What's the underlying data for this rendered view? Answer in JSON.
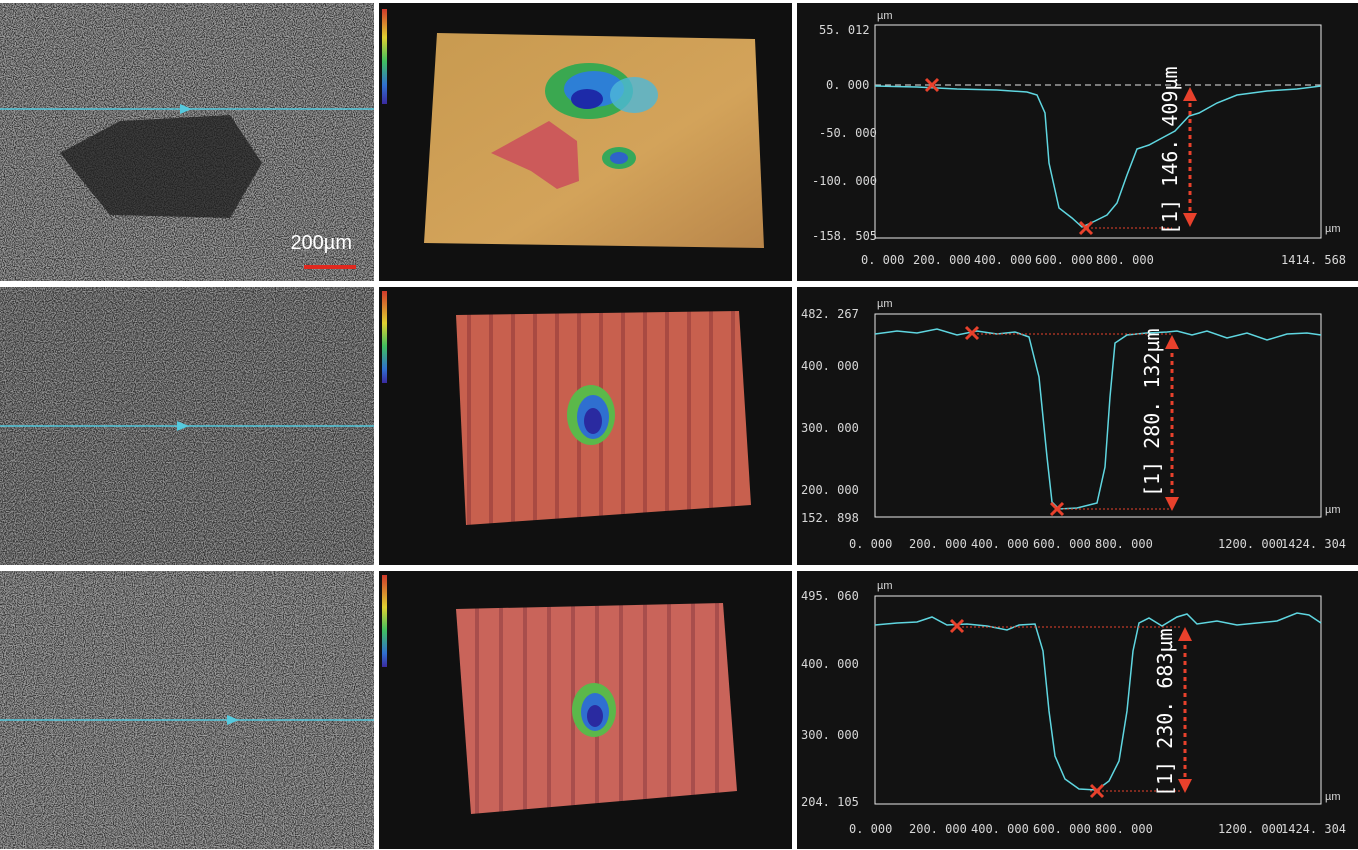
{
  "colors": {
    "profile_line": "#5fd6e0",
    "scan_line": "#55c9dd",
    "marker": "#e8412c",
    "arrow": "#e8412c",
    "panel_bg": "#111111"
  },
  "rows": [
    {
      "micrograph": {
        "scale_label": "200µm"
      },
      "profile": {
        "unit_y": "µm",
        "unit_x": "µm",
        "y_ticks": [
          "55. 012",
          "0. 000",
          "-50. 000",
          "-100. 000",
          "-158. 505"
        ],
        "x_ticks": [
          "0. 000",
          "200. 000",
          "400. 000",
          "600. 000",
          "800. 000",
          "1414. 568"
        ],
        "depth_label": "[1]  146. 409µm"
      }
    },
    {
      "micrograph": {},
      "profile": {
        "unit_y": "µm",
        "unit_x": "µm",
        "y_ticks": [
          "482. 267",
          "400. 000",
          "300. 000",
          "200. 000",
          "152. 898"
        ],
        "x_ticks": [
          "0. 000",
          "200. 000",
          "400. 000",
          "600. 000",
          "800. 000",
          "1200. 000",
          "1424. 304"
        ],
        "depth_label": "[1]  280. 132µm"
      }
    },
    {
      "micrograph": {},
      "profile": {
        "unit_y": "µm",
        "unit_x": "µm",
        "y_ticks": [
          "495. 060",
          "400. 000",
          "300. 000",
          "204. 105"
        ],
        "x_ticks": [
          "0. 000",
          "200. 000",
          "400. 000",
          "600. 000",
          "800. 000",
          "1200. 000",
          "1424. 304"
        ],
        "depth_label": "[1]  230. 683µm"
      }
    }
  ]
}
